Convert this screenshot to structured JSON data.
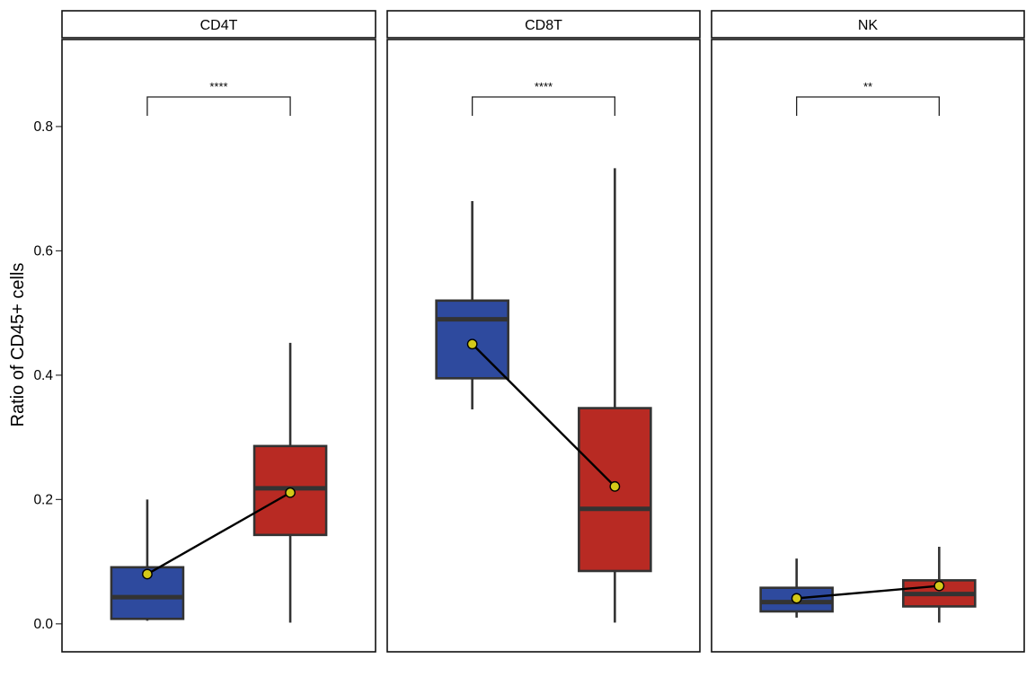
{
  "chart_data": {
    "type": "boxplot",
    "ylabel": "Ratio of CD45+ cells",
    "xlabel": "",
    "ylim": [
      -0.045,
      0.94
    ],
    "yticks": [
      0.0,
      0.2,
      0.4,
      0.6,
      0.8
    ],
    "ytick_labels": [
      "0.0",
      "0.2",
      "0.4",
      "0.6",
      "0.8"
    ],
    "grid": false,
    "legend": "none",
    "colors": {
      "group_1": "#2E4A9E",
      "group_2": "#B82A23",
      "box_border": "#333333",
      "mean_point": "#D4C918",
      "mean_line": "#000000"
    },
    "panels": [
      {
        "title": "CD4T",
        "significance": "****",
        "boxes": [
          {
            "whisker_low": 0.005,
            "q1": 0.008,
            "median": 0.043,
            "q3": 0.091,
            "whisker_high": 0.2,
            "mean": 0.08
          },
          {
            "whisker_low": 0.002,
            "q1": 0.143,
            "median": 0.218,
            "q3": 0.286,
            "whisker_high": 0.452,
            "mean": 0.211
          }
        ]
      },
      {
        "title": "CD8T",
        "significance": "****",
        "boxes": [
          {
            "whisker_low": 0.345,
            "q1": 0.395,
            "median": 0.49,
            "q3": 0.52,
            "whisker_high": 0.68,
            "mean": 0.45
          },
          {
            "whisker_low": 0.002,
            "q1": 0.085,
            "median": 0.185,
            "q3": 0.347,
            "whisker_high": 0.733,
            "mean": 0.221
          }
        ]
      },
      {
        "title": "NK",
        "significance": "**",
        "boxes": [
          {
            "whisker_low": 0.01,
            "q1": 0.02,
            "median": 0.035,
            "q3": 0.058,
            "whisker_high": 0.105,
            "mean": 0.041
          },
          {
            "whisker_low": 0.002,
            "q1": 0.028,
            "median": 0.048,
            "q3": 0.07,
            "whisker_high": 0.124,
            "mean": 0.061
          }
        ]
      }
    ]
  }
}
